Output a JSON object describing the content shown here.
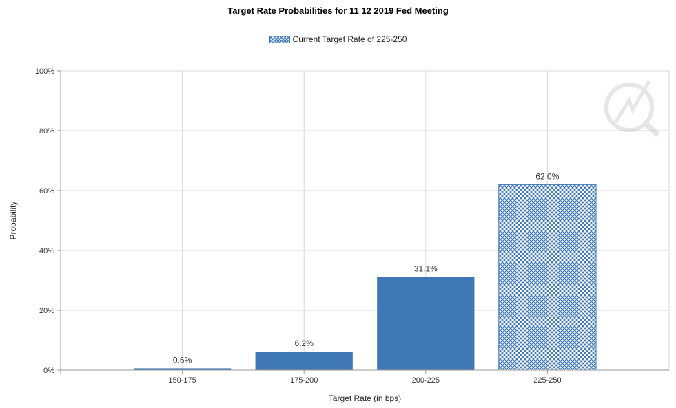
{
  "chart_data": {
    "type": "bar",
    "title": "Target Rate Probabilities for 11 12 2019 Fed Meeting",
    "xlabel": "Target Rate (in bps)",
    "ylabel": "Probability",
    "categories": [
      "150-175",
      "175-200",
      "200-225",
      "225-250"
    ],
    "values": [
      0.6,
      6.2,
      31.1,
      62.0
    ],
    "value_labels": [
      "0.6%",
      "6.2%",
      "31.1%",
      "62.0%"
    ],
    "highlighted_category": "225-250",
    "ylim": [
      0,
      100
    ],
    "yticks": [
      0,
      20,
      40,
      60,
      80,
      100
    ],
    "ytick_labels": [
      "0%",
      "20%",
      "40%",
      "60%",
      "80%",
      "100%"
    ],
    "legend": [
      {
        "name": "Current Target Rate of 225-250",
        "pattern": "crosshatch"
      }
    ],
    "legend_position": "top-center",
    "grid": true,
    "colors": {
      "bar": "#3f78b5",
      "hatch_line": "#3f78b5",
      "hatch_bg": "#ffffff",
      "grid": "#d9d9d9",
      "axis": "#999999"
    }
  }
}
